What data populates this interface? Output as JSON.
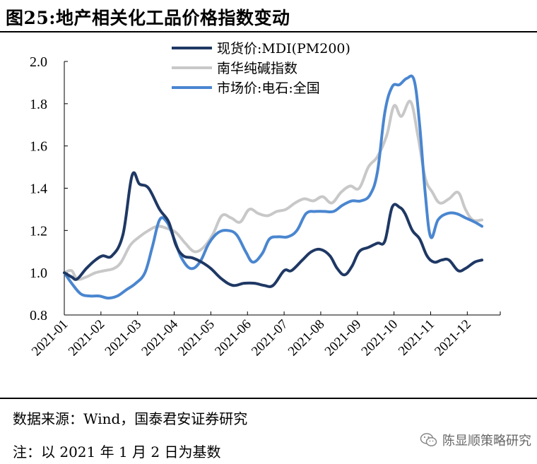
{
  "header": {
    "title": "图25:地产相关化工品价格指数变动"
  },
  "footer": {
    "source": "数据来源：Wind，国泰君安证券研究",
    "note": "注：以 2021 年 1 月 2 日为基数"
  },
  "watermark": {
    "text": "陈显顺策略研究",
    "icon": "wechat-icon"
  },
  "colors": {
    "series_mdi": "#1f3864",
    "series_soda": "#c8c8c8",
    "series_calcium": "#4a86d0",
    "axis": "#000000"
  },
  "chart_data": {
    "type": "line",
    "title": "",
    "xlabel": "",
    "ylabel": "",
    "ylim": [
      0.8,
      2.0
    ],
    "yticks": [
      "0.8",
      "1.0",
      "1.2",
      "1.4",
      "1.6",
      "1.8",
      "2.0"
    ],
    "categories": [
      "2021-01",
      "2021-02",
      "2021-03",
      "2021-04",
      "2021-05",
      "2021-06",
      "2021-07",
      "2021-08",
      "2021-09",
      "2021-10",
      "2021-11",
      "2021-12"
    ],
    "grid": false,
    "legend": "top-center",
    "series": [
      {
        "name": "现货价:MDI(PM200)",
        "color": "#1f3864",
        "points": [
          [
            0,
            1.0
          ],
          [
            0.2,
            0.98
          ],
          [
            0.35,
            0.97
          ],
          [
            0.6,
            1.02
          ],
          [
            0.85,
            1.06
          ],
          [
            1.05,
            1.08
          ],
          [
            1.3,
            1.08
          ],
          [
            1.6,
            1.18
          ],
          [
            1.85,
            1.46
          ],
          [
            2.05,
            1.42
          ],
          [
            2.3,
            1.4
          ],
          [
            2.6,
            1.3
          ],
          [
            2.85,
            1.24
          ],
          [
            3.05,
            1.13
          ],
          [
            3.25,
            1.08
          ],
          [
            3.5,
            1.07
          ],
          [
            3.75,
            1.05
          ],
          [
            4.0,
            1.02
          ],
          [
            4.3,
            0.97
          ],
          [
            4.6,
            0.94
          ],
          [
            4.9,
            0.95
          ],
          [
            5.2,
            0.95
          ],
          [
            5.45,
            0.94
          ],
          [
            5.7,
            0.94
          ],
          [
            6.0,
            1.01
          ],
          [
            6.2,
            1.01
          ],
          [
            6.5,
            1.06
          ],
          [
            6.75,
            1.1
          ],
          [
            7.0,
            1.11
          ],
          [
            7.25,
            1.08
          ],
          [
            7.45,
            1.02
          ],
          [
            7.65,
            0.99
          ],
          [
            7.85,
            1.03
          ],
          [
            8.05,
            1.1
          ],
          [
            8.3,
            1.12
          ],
          [
            8.55,
            1.14
          ],
          [
            8.75,
            1.15
          ],
          [
            8.95,
            1.31
          ],
          [
            9.15,
            1.31
          ],
          [
            9.3,
            1.28
          ],
          [
            9.5,
            1.2
          ],
          [
            9.7,
            1.16
          ],
          [
            9.9,
            1.08
          ],
          [
            10.1,
            1.05
          ],
          [
            10.3,
            1.06
          ],
          [
            10.5,
            1.06
          ],
          [
            10.75,
            1.01
          ],
          [
            10.95,
            1.02
          ],
          [
            11.2,
            1.05
          ],
          [
            11.4,
            1.06
          ]
        ]
      },
      {
        "name": "南华纯碱指数",
        "color": "#c8c8c8",
        "points": [
          [
            0,
            1.0
          ],
          [
            0.2,
            1.01
          ],
          [
            0.35,
            0.97
          ],
          [
            0.6,
            0.98
          ],
          [
            0.85,
            1.0
          ],
          [
            1.1,
            1.01
          ],
          [
            1.35,
            1.02
          ],
          [
            1.55,
            1.05
          ],
          [
            1.8,
            1.13
          ],
          [
            2.05,
            1.17
          ],
          [
            2.3,
            1.2
          ],
          [
            2.55,
            1.22
          ],
          [
            2.8,
            1.21
          ],
          [
            3.05,
            1.19
          ],
          [
            3.3,
            1.14
          ],
          [
            3.55,
            1.1
          ],
          [
            3.8,
            1.12
          ],
          [
            4.05,
            1.18
          ],
          [
            4.3,
            1.27
          ],
          [
            4.55,
            1.26
          ],
          [
            4.8,
            1.24
          ],
          [
            5.05,
            1.3
          ],
          [
            5.3,
            1.28
          ],
          [
            5.55,
            1.27
          ],
          [
            5.8,
            1.29
          ],
          [
            6.05,
            1.3
          ],
          [
            6.3,
            1.33
          ],
          [
            6.55,
            1.35
          ],
          [
            6.8,
            1.34
          ],
          [
            7.05,
            1.36
          ],
          [
            7.3,
            1.33
          ],
          [
            7.55,
            1.38
          ],
          [
            7.8,
            1.41
          ],
          [
            8.05,
            1.4
          ],
          [
            8.3,
            1.5
          ],
          [
            8.55,
            1.55
          ],
          [
            8.8,
            1.65
          ],
          [
            9.0,
            1.79
          ],
          [
            9.2,
            1.74
          ],
          [
            9.45,
            1.81
          ],
          [
            9.65,
            1.65
          ],
          [
            9.85,
            1.45
          ],
          [
            10.05,
            1.38
          ],
          [
            10.25,
            1.33
          ],
          [
            10.5,
            1.35
          ],
          [
            10.75,
            1.38
          ],
          [
            10.95,
            1.3
          ],
          [
            11.15,
            1.25
          ],
          [
            11.4,
            1.25
          ]
        ]
      },
      {
        "name": "市场价:电石:全国",
        "color": "#4a86d0",
        "points": [
          [
            0,
            1.0
          ],
          [
            0.2,
            0.95
          ],
          [
            0.45,
            0.9
          ],
          [
            0.7,
            0.89
          ],
          [
            0.95,
            0.89
          ],
          [
            1.2,
            0.88
          ],
          [
            1.45,
            0.89
          ],
          [
            1.7,
            0.92
          ],
          [
            1.95,
            0.95
          ],
          [
            2.2,
            1.0
          ],
          [
            2.4,
            1.12
          ],
          [
            2.6,
            1.25
          ],
          [
            2.8,
            1.24
          ],
          [
            3.0,
            1.16
          ],
          [
            3.2,
            1.07
          ],
          [
            3.45,
            1.02
          ],
          [
            3.7,
            1.05
          ],
          [
            3.95,
            1.14
          ],
          [
            4.2,
            1.19
          ],
          [
            4.45,
            1.2
          ],
          [
            4.7,
            1.18
          ],
          [
            4.95,
            1.1
          ],
          [
            5.15,
            1.05
          ],
          [
            5.4,
            1.09
          ],
          [
            5.6,
            1.16
          ],
          [
            5.85,
            1.17
          ],
          [
            6.1,
            1.17
          ],
          [
            6.35,
            1.2
          ],
          [
            6.6,
            1.28
          ],
          [
            6.85,
            1.29
          ],
          [
            7.1,
            1.29
          ],
          [
            7.35,
            1.29
          ],
          [
            7.6,
            1.32
          ],
          [
            7.85,
            1.34
          ],
          [
            8.1,
            1.34
          ],
          [
            8.35,
            1.37
          ],
          [
            8.55,
            1.48
          ],
          [
            8.75,
            1.76
          ],
          [
            8.95,
            1.88
          ],
          [
            9.15,
            1.89
          ],
          [
            9.35,
            1.92
          ],
          [
            9.55,
            1.91
          ],
          [
            9.7,
            1.7
          ],
          [
            9.85,
            1.38
          ],
          [
            10.0,
            1.17
          ],
          [
            10.2,
            1.25
          ],
          [
            10.45,
            1.28
          ],
          [
            10.7,
            1.28
          ],
          [
            10.95,
            1.26
          ],
          [
            11.2,
            1.24
          ],
          [
            11.4,
            1.22
          ]
        ]
      }
    ]
  }
}
